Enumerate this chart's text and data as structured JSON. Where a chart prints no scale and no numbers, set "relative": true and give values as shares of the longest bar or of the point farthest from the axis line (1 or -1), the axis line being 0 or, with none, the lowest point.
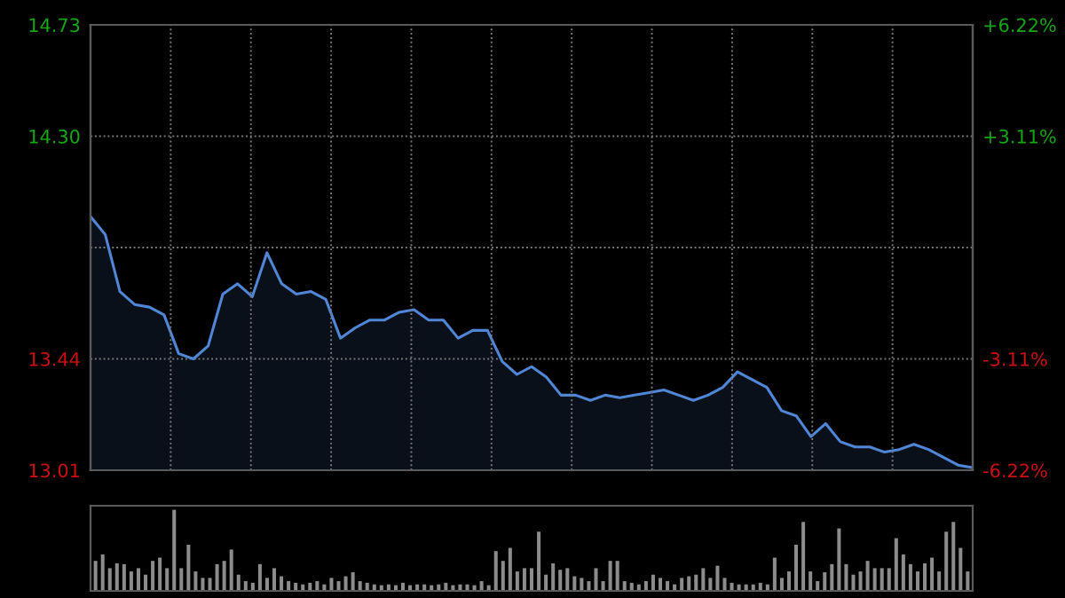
{
  "chart_data": [
    {
      "type": "area",
      "color": "#4f86d6",
      "grid": true,
      "tick_labels": "y",
      "categories": [
        null,
        null,
        null,
        null,
        null,
        null,
        null,
        null,
        null,
        null,
        null,
        null,
        null,
        null,
        null,
        null,
        null,
        null,
        null,
        null,
        null,
        null,
        null,
        null,
        null,
        null,
        null,
        null,
        null,
        null,
        null,
        null,
        null,
        null,
        null,
        null,
        null,
        null,
        null,
        null,
        null,
        null,
        null,
        null,
        null,
        null,
        null,
        null,
        null,
        null,
        null,
        null,
        null,
        null,
        null,
        null,
        null,
        null,
        null,
        null,
        null
      ],
      "values": [
        13.99,
        13.92,
        13.7,
        13.65,
        13.64,
        13.61,
        13.46,
        13.44,
        13.49,
        13.69,
        13.73,
        13.68,
        13.85,
        13.73,
        13.69,
        13.7,
        13.67,
        13.52,
        13.56,
        13.59,
        13.59,
        13.62,
        13.63,
        13.59,
        13.59,
        13.52,
        13.55,
        13.55,
        13.43,
        13.38,
        13.41,
        13.37,
        13.3,
        13.3,
        13.28,
        13.3,
        13.29,
        13.3,
        13.31,
        13.32,
        13.3,
        13.28,
        13.3,
        13.33,
        13.39,
        13.36,
        13.33,
        13.24,
        13.22,
        13.14,
        13.19,
        13.12,
        13.1,
        13.1,
        13.08,
        13.09,
        13.11,
        13.09,
        13.06,
        13.03,
        13.02
      ],
      "ylim": [
        13.01,
        14.73
      ],
      "yticks": [
        13.01,
        13.44,
        {
          "value": 13.87,
          "label": null
        },
        {
          "value": 14.3,
          "label": "14.30"
        },
        14.73
      ],
      "y2lim": [
        -6.22,
        6.22
      ],
      "y2ticks": [
        {
          "value": -6.22,
          "label": "-6.22%"
        },
        {
          "value": -3.11,
          "label": "-3.11%"
        },
        {
          "value": 3.11,
          "label": "+3.11%"
        },
        {
          "value": 6.22,
          "label": "+6.22%"
        }
      ]
    },
    {
      "type": "bar",
      "relative": true,
      "color": "#8c8c8c",
      "tick_labels": false,
      "categories": [
        null,
        null,
        null,
        null,
        null,
        null,
        null,
        null,
        null,
        null,
        null,
        null,
        null,
        null,
        null,
        null,
        null,
        null,
        null,
        null,
        null,
        null,
        null,
        null,
        null,
        null,
        null,
        null,
        null,
        null,
        null,
        null,
        null,
        null,
        null,
        null,
        null,
        null,
        null,
        null,
        null,
        null,
        null,
        null,
        null,
        null,
        null,
        null,
        null,
        null,
        null,
        null,
        null,
        null,
        null,
        null,
        null,
        null,
        null,
        null,
        null,
        null,
        null,
        null,
        null,
        null,
        null,
        null,
        null,
        null,
        null,
        null,
        null,
        null,
        null,
        null,
        null,
        null,
        null,
        null,
        null,
        null,
        null,
        null,
        null,
        null,
        null,
        null,
        null,
        null,
        null,
        null,
        null,
        null,
        null,
        null,
        null,
        null,
        null,
        null,
        null,
        null,
        null,
        null,
        null,
        null,
        null,
        null,
        null,
        null,
        null,
        null,
        null,
        null,
        null,
        null,
        null,
        null,
        null,
        null,
        null,
        null,
        null
      ],
      "values": [
        0.37,
        0.45,
        0.28,
        0.34,
        0.33,
        0.24,
        0.28,
        0.2,
        0.37,
        0.41,
        0.28,
        1,
        0.28,
        0.57,
        0.24,
        0.16,
        0.16,
        0.33,
        0.37,
        0.51,
        0.2,
        0.12,
        0.1,
        0.33,
        0.16,
        0.28,
        0.18,
        0.12,
        0.1,
        0.08,
        0.1,
        0.12,
        0.08,
        0.16,
        0.12,
        0.18,
        0.23,
        0.12,
        0.1,
        0.08,
        0.07,
        0.08,
        0.07,
        0.1,
        0.07,
        0.08,
        0.08,
        0.07,
        0.08,
        0.1,
        0.07,
        0.08,
        0.08,
        0.07,
        0.12,
        0.07,
        0.49,
        0.37,
        0.53,
        0.24,
        0.28,
        0.28,
        0.73,
        0.2,
        0.34,
        0.26,
        0.28,
        0.18,
        0.16,
        0.12,
        0.28,
        0.12,
        0.37,
        0.37,
        0.12,
        0.1,
        0.08,
        0.12,
        0.2,
        0.16,
        0.12,
        0.08,
        0.16,
        0.18,
        0.2,
        0.28,
        0.16,
        0.31,
        0.16,
        0.1,
        0.08,
        0.08,
        0.08,
        0.1,
        0.08,
        0.41,
        0.16,
        0.24,
        0.57,
        0.85,
        0.24,
        0.12,
        0.23,
        0.33,
        0.77,
        0.33,
        0.2,
        0.24,
        0.37,
        0.28,
        0.28,
        0.28,
        0.65,
        0.45,
        0.33,
        0.24,
        0.34,
        0.41,
        0.24,
        0.73,
        0.85,
        0.53,
        0.24
      ]
    }
  ]
}
